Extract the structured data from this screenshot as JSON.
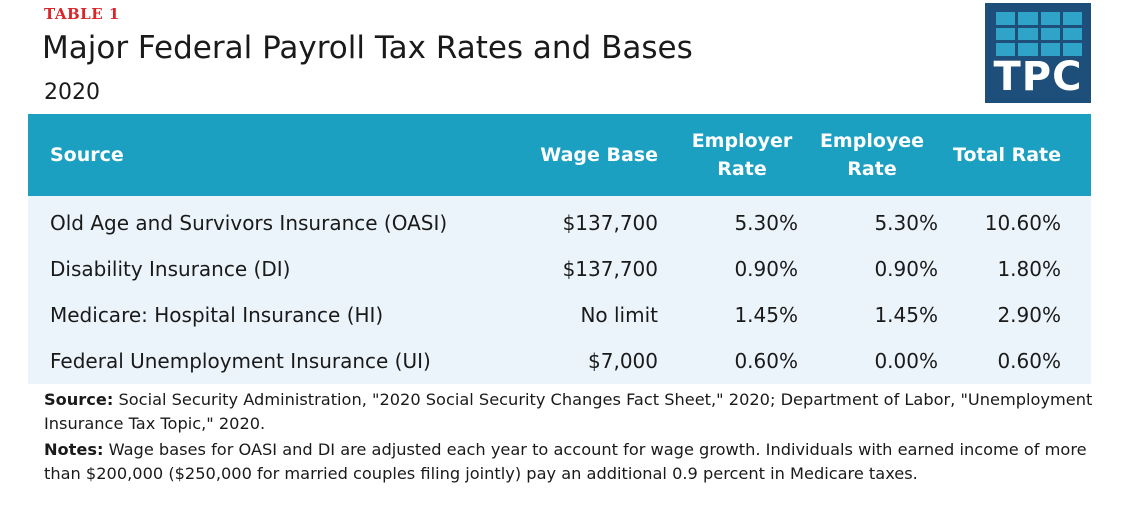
{
  "header": {
    "tag": "TABLE 1",
    "title": "Major Federal Payroll Tax Rates and Bases",
    "subtitle": "2020",
    "logo_text": "TPC"
  },
  "table": {
    "columns": {
      "source": "Source",
      "wage_base": "Wage Base",
      "employer_rate_line1": "Employer",
      "employer_rate_line2": "Rate",
      "employee_rate_line1": "Employee",
      "employee_rate_line2": "Rate",
      "total_rate": "Total Rate"
    },
    "rows": [
      {
        "source": "Old Age and Survivors Insurance (OASI)",
        "wage_base": "$137,700",
        "employer_rate": "5.30%",
        "employee_rate": "5.30%",
        "total_rate": "10.60%"
      },
      {
        "source": "Disability Insurance (DI)",
        "wage_base": "$137,700",
        "employer_rate": "0.90%",
        "employee_rate": "0.90%",
        "total_rate": "1.80%"
      },
      {
        "source": "Medicare: Hospital Insurance (HI)",
        "wage_base": "No limit",
        "employer_rate": "1.45%",
        "employee_rate": "1.45%",
        "total_rate": "2.90%"
      },
      {
        "source": "Federal Unemployment Insurance (UI)",
        "wage_base": "$7,000",
        "employer_rate": "0.60%",
        "employee_rate": "0.00%",
        "total_rate": "0.60%"
      }
    ]
  },
  "footnotes": {
    "source_label": "Source:",
    "source_text": "Social Security Administration, \"2020 Social Security Changes Fact Sheet,\" 2020; Department of Labor, \"Unemployment Insurance Tax Topic,\" 2020.",
    "notes_label": "Notes:",
    "notes_text": "Wage bases for OASI and DI are adjusted each year to account for wage growth. Individuals with earned income of more than $200,000 ($250,000 for married couples filing jointly) pay an additional 0.9 percent in Medicare taxes."
  },
  "colors": {
    "tag_red": "#d9262a",
    "header_blue": "#1ba0c2",
    "row_bg": "#eaf4fa",
    "logo_navy": "#1d4f7a",
    "logo_squares": "#2fa3c8"
  }
}
